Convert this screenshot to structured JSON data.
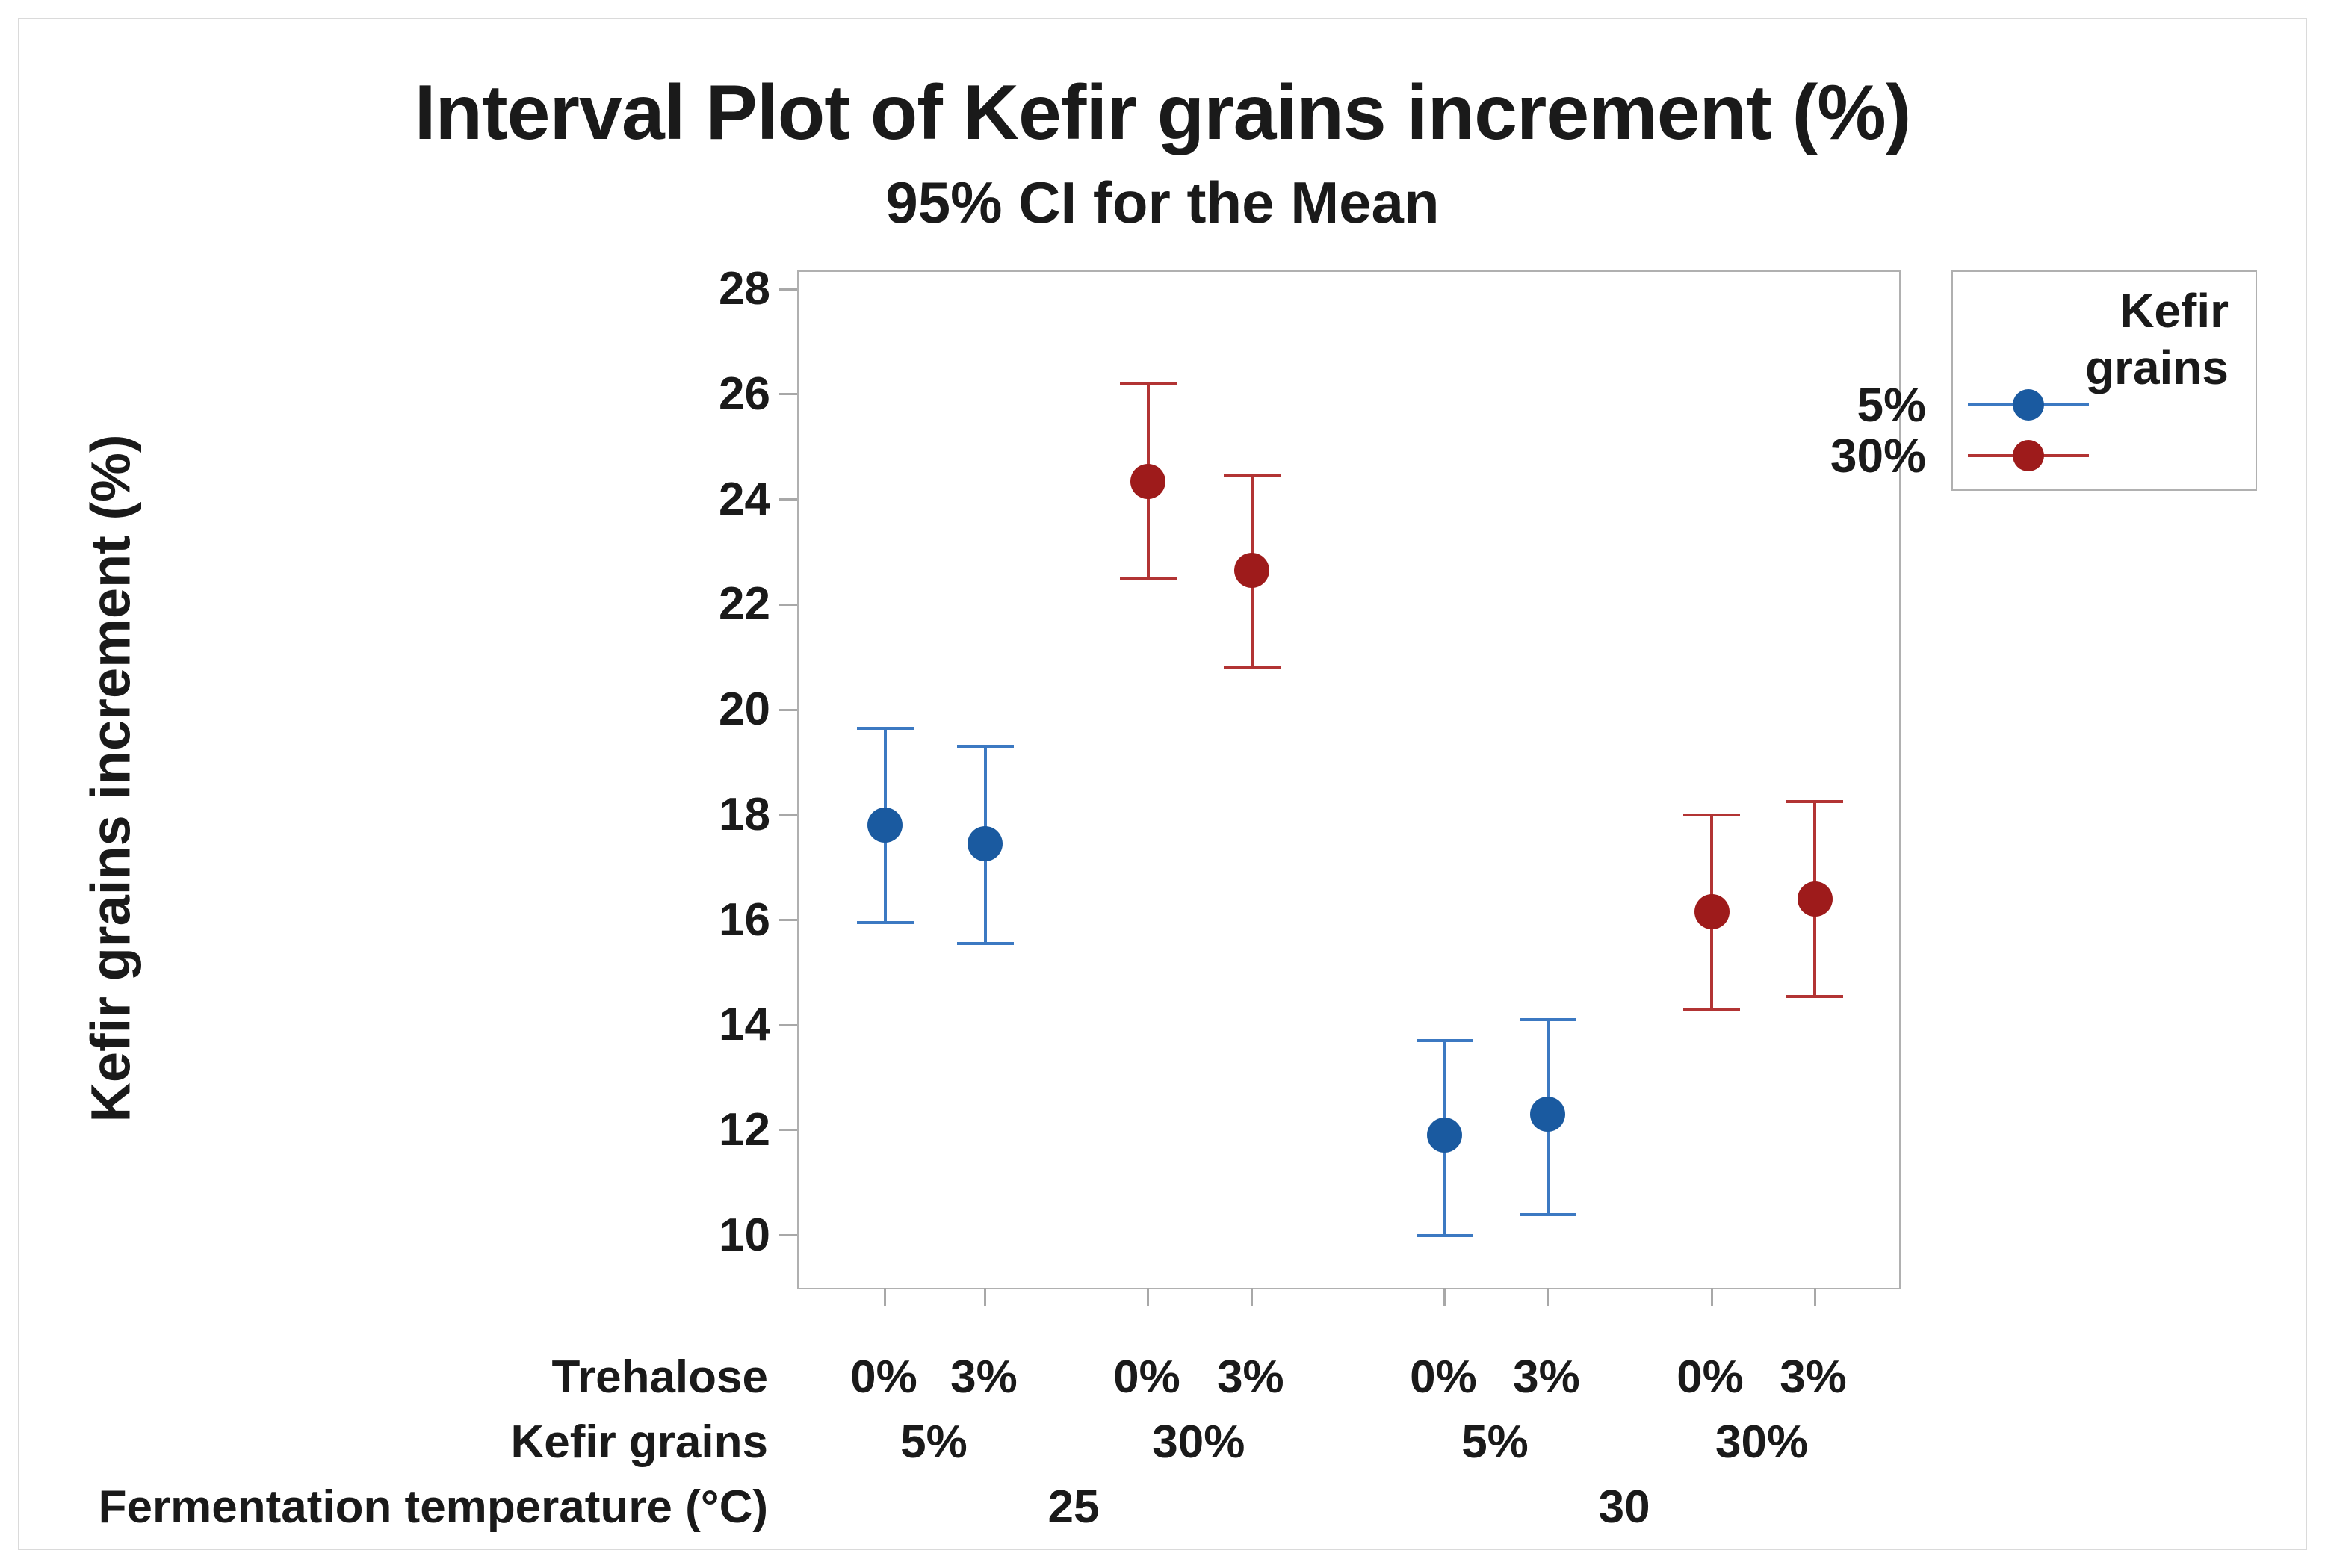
{
  "page": {
    "title": "Interval Plot of Kefir grains increment (%)",
    "subtitle": "95% CI for the Mean"
  },
  "colors": {
    "series_5_dot": "#1a5aa0",
    "series_5_line": "#3c79c2",
    "series_30_dot": "#9e1b1b",
    "series_30_line": "#b23434",
    "axis_border": "#b0b0b0",
    "tick": "#a8a8a8",
    "text": "#1a1a1a"
  },
  "chart_data": {
    "type": "interval",
    "title": "Interval Plot of Kefir grains increment (%)",
    "subtitle": "95% CI for the Mean",
    "ylabel": "Kefir grains increment (%)",
    "y_ticks": [
      28,
      26,
      24,
      22,
      20,
      18,
      16,
      14,
      12,
      10
    ],
    "y_axis_range": [
      9.0,
      28.33
    ],
    "grid": false,
    "legend_position": "top-right",
    "legend": {
      "title_lines": [
        "Kefir",
        "grains"
      ],
      "entries": [
        {
          "name": "5%"
        },
        {
          "name": "30%"
        }
      ]
    },
    "x_rows": [
      {
        "label": "Trehalose"
      },
      {
        "label": "Kefir grains"
      },
      {
        "label": "Fermentation temperature (°C)"
      }
    ],
    "points": [
      {
        "trehalose": "0%",
        "kefir_grains": "5%",
        "temperature": "25",
        "series": "5%",
        "mean": 17.8,
        "ci_low": 15.95,
        "ci_high": 19.65
      },
      {
        "trehalose": "3%",
        "kefir_grains": "5%",
        "temperature": "25",
        "series": "5%",
        "mean": 17.45,
        "ci_low": 15.55,
        "ci_high": 19.3
      },
      {
        "trehalose": "0%",
        "kefir_grains": "30%",
        "temperature": "25",
        "series": "30%",
        "mean": 24.35,
        "ci_low": 22.5,
        "ci_high": 26.2
      },
      {
        "trehalose": "3%",
        "kefir_grains": "30%",
        "temperature": "25",
        "series": "30%",
        "mean": 22.65,
        "ci_low": 20.8,
        "ci_high": 24.45
      },
      {
        "trehalose": "0%",
        "kefir_grains": "5%",
        "temperature": "30",
        "series": "5%",
        "mean": 11.9,
        "ci_low": 10.0,
        "ci_high": 13.7
      },
      {
        "trehalose": "3%",
        "kefir_grains": "5%",
        "temperature": "30",
        "series": "5%",
        "mean": 12.3,
        "ci_low": 10.4,
        "ci_high": 14.1
      },
      {
        "trehalose": "0%",
        "kefir_grains": "30%",
        "temperature": "30",
        "series": "30%",
        "mean": 16.15,
        "ci_low": 14.3,
        "ci_high": 18.0
      },
      {
        "trehalose": "3%",
        "kefir_grains": "30%",
        "temperature": "30",
        "series": "30%",
        "mean": 16.4,
        "ci_low": 14.55,
        "ci_high": 18.25
      }
    ],
    "kefir_group_labels": [
      {
        "label": "5%"
      },
      {
        "label": "30%"
      },
      {
        "label": "5%"
      },
      {
        "label": "30%"
      }
    ],
    "temperature_group_labels": [
      {
        "label": "25"
      },
      {
        "label": "30"
      }
    ]
  }
}
